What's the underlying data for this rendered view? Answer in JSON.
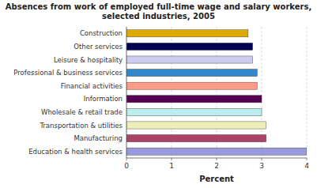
{
  "chart_data": {
    "type": "bar",
    "orientation": "horizontal",
    "title": "Absences from work of employed full-time wage and salary workers,\nselected industries, 2005",
    "categories": [
      "Education & health services",
      "Manufacturing",
      "Transportation & utilities",
      "Wholesale & retail trade",
      "Information",
      "Financial activities",
      "Professional & business services",
      "Leisure & hospitality",
      "Other services",
      "Construction"
    ],
    "values": [
      4.0,
      3.1,
      3.1,
      3.0,
      3.0,
      2.9,
      2.9,
      2.8,
      2.8,
      2.7
    ],
    "colors": [
      "#9999dd",
      "#aa4466",
      "#eeeebb",
      "#bbeeee",
      "#550055",
      "#ff9988",
      "#3388cc",
      "#ccccee",
      "#000055",
      "#ddaa00"
    ],
    "xlabel": "Percent",
    "xlim": [
      0,
      4
    ],
    "xticks": [
      0,
      1,
      2,
      3,
      4
    ],
    "grid": true
  }
}
